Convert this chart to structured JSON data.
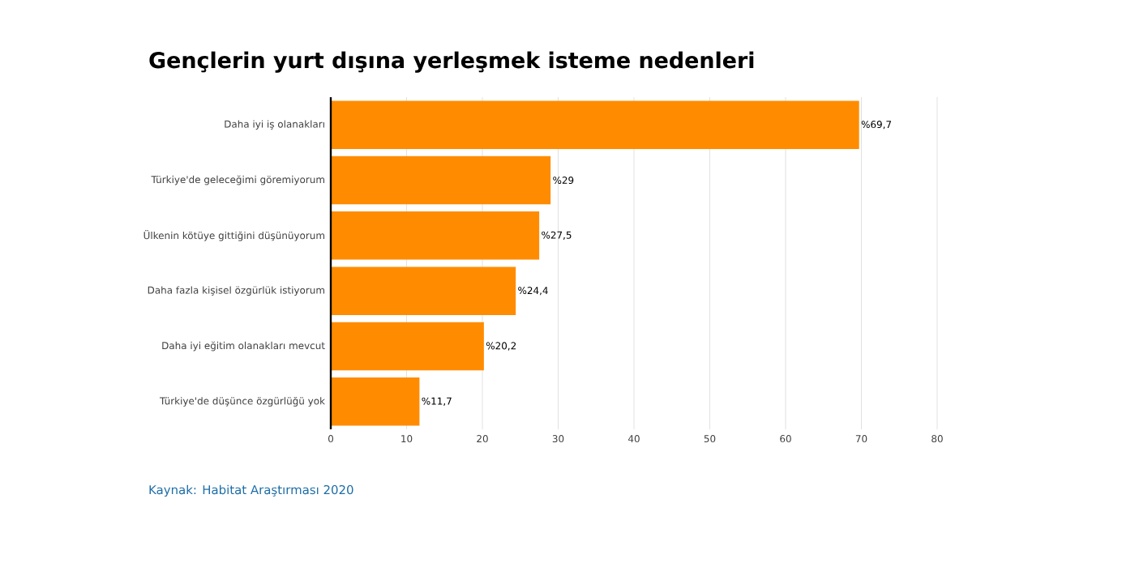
{
  "chart_data": {
    "type": "bar",
    "orientation": "horizontal",
    "title": "Gençlerin yurt dışına yerleşmek isteme nedenleri",
    "categories": [
      "Daha iyi iş olanakları",
      "Türkiye'de geleceğimi göremiyorum",
      "Ülkenin kötüye gittiğini düşünüyorum",
      "Daha fazla kişisel özgürlük istiyorum",
      "Daha iyi eğitim olanakları mevcut",
      "Türkiye'de düşünce özgürlüğü yok"
    ],
    "values": [
      69.7,
      29,
      27.5,
      24.4,
      20.2,
      11.7
    ],
    "value_labels": [
      "%69,7",
      "%29",
      "%27,5",
      "%24,4",
      "%20,2",
      "%11,7"
    ],
    "color": "#ff8c00",
    "xlim": [
      0,
      80
    ],
    "xticks": [
      0,
      10,
      20,
      30,
      40,
      50,
      60,
      70,
      80
    ],
    "grid": "x",
    "annotations": [
      "Kaynak: Habitat Araştırması 2020"
    ]
  }
}
